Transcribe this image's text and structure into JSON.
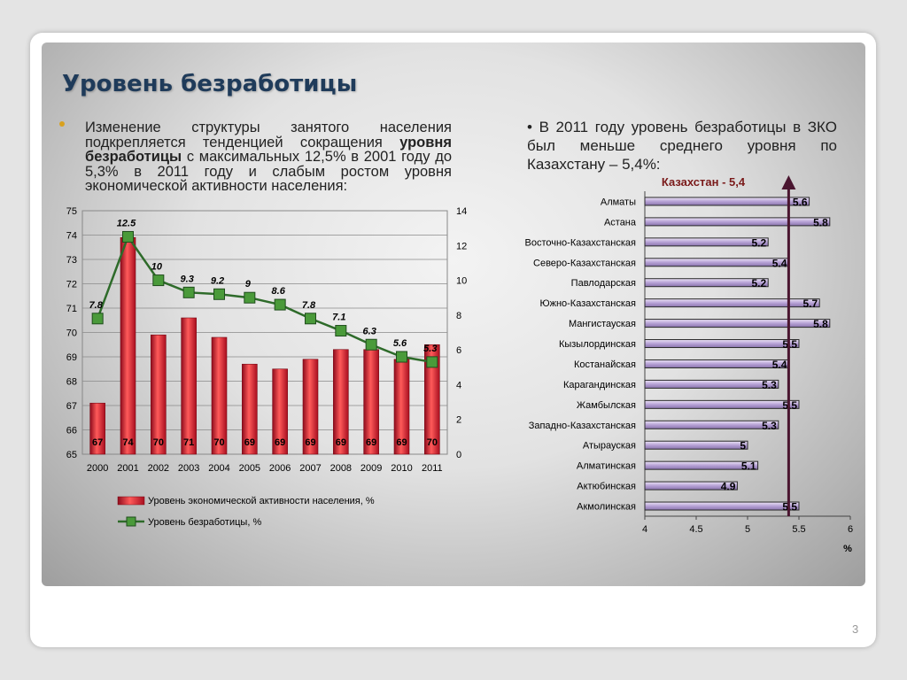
{
  "slide": {
    "title": "Уровень безработицы",
    "left_text": "Изменение структуры занятого населения подкрепляется тенденцией сокращения уровня безработицы с максимальных 12,5% в 2001 году до 5,3% в 2011 году и слабым ростом уровня экономической активности населения:",
    "left_text_bold_part": "уровня безработицы",
    "right_text": "• В 2011 году уровень безработицы в ЗКО был меньше среднего уровня по Казахстану – 5,4%:",
    "page_number": "3",
    "colors": {
      "title": "#1f3b5a",
      "bar": "#c8102e",
      "line": "#2e6b2a",
      "marker": "#4a9a3a",
      "hbar": "#b7a2d6",
      "arrow": "#4a1630",
      "annotation": "#7a1a1a"
    }
  },
  "chart_data": [
    {
      "type": "bar+line",
      "categories": [
        "2000",
        "2001",
        "2002",
        "2003",
        "2004",
        "2005",
        "2006",
        "2007",
        "2008",
        "2009",
        "2010",
        "2011"
      ],
      "series": [
        {
          "name": "Уровень экономической активности населения, %",
          "type": "bar",
          "axis": "left",
          "values": [
            67.1,
            73.9,
            69.9,
            70.6,
            69.8,
            68.7,
            68.5,
            68.9,
            69.3,
            69.3,
            68.9,
            69.5
          ],
          "data_labels": [
            "67",
            "74",
            "70",
            "71",
            "70",
            "69",
            "69",
            "69",
            "69",
            "69",
            "69",
            "70"
          ]
        },
        {
          "name": "Уровень безработицы, %",
          "type": "line",
          "axis": "right",
          "values": [
            7.8,
            12.5,
            10,
            9.3,
            9.2,
            9,
            8.6,
            7.8,
            7.1,
            6.3,
            5.6,
            5.3
          ],
          "data_labels": [
            "7.8",
            "12.5",
            "10",
            "9.3",
            "9.2",
            "9",
            "8.6",
            "7.8",
            "7.1",
            "6.3",
            "5.6",
            "5.3"
          ]
        }
      ],
      "y_left": {
        "lim": [
          65,
          75
        ],
        "ticks": [
          "65",
          "66",
          "67",
          "68",
          "69",
          "70",
          "71",
          "72",
          "73",
          "74",
          "75"
        ]
      },
      "y_right": {
        "lim": [
          0,
          14
        ],
        "ticks": [
          "0",
          "2",
          "4",
          "6",
          "8",
          "10",
          "12",
          "14"
        ]
      },
      "grid": true,
      "legend_position": "bottom"
    },
    {
      "type": "bar",
      "orientation": "horizontal",
      "categories": [
        "Алматы",
        "Астана",
        "Восточно-Казахстанская",
        "Северо-Казахстанская",
        "Павлодарская",
        "Южно-Казахстанская",
        "Мангистауская",
        "Кызылординская",
        "Костанайская",
        "Карагандинская",
        "Жамбылская",
        "Западно-Казахстанская",
        "Атырауская",
        "Алматинская",
        "Актюбинская",
        "Акмолинская"
      ],
      "values": [
        5.6,
        5.8,
        5.2,
        5.4,
        5.2,
        5.7,
        5.8,
        5.5,
        5.4,
        5.3,
        5.5,
        5.3,
        5.0,
        5.1,
        4.9,
        5.5
      ],
      "data_labels": [
        "5.6",
        "5.8",
        "5.2",
        "5.4",
        "5.2",
        "5.7",
        "5.8",
        "5.5",
        "5.4",
        "5.3",
        "5.5",
        "5.3",
        "5",
        "5.1",
        "4.9",
        "5.5"
      ],
      "xlim": [
        4,
        6
      ],
      "x_ticks": [
        "4",
        "4.5",
        "5",
        "5.5",
        "6"
      ],
      "xlabel": "%",
      "reference": {
        "value": 5.4,
        "label": "Казахстан - 5,4"
      }
    }
  ]
}
